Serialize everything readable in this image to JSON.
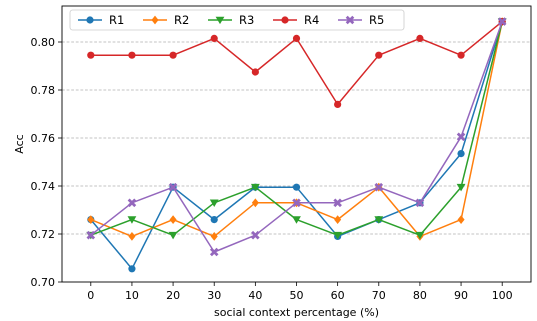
{
  "chart_data": {
    "type": "line",
    "title": "",
    "xlabel": "social context percentage (%)",
    "ylabel": "Acc",
    "x": [
      0,
      10,
      20,
      30,
      40,
      50,
      60,
      70,
      80,
      90,
      100
    ],
    "xlim": [
      -7,
      107
    ],
    "ylim": [
      0.7,
      0.815
    ],
    "yticks": [
      0.7,
      0.72,
      0.74,
      0.76,
      0.78,
      0.8
    ],
    "ytick_labels": [
      "0.70",
      "0.72",
      "0.74",
      "0.76",
      "0.78",
      "0.80"
    ],
    "grid": "horizontal dashed",
    "legend": "top, single row",
    "series": [
      {
        "name": "R1",
        "color": "#1f77b4",
        "marker": "circle",
        "values": [
          0.726,
          0.7055,
          0.7395,
          0.726,
          0.7395,
          0.7395,
          0.719,
          0.726,
          0.733,
          0.7535,
          0.8085
        ]
      },
      {
        "name": "R2",
        "color": "#ff7f0e",
        "marker": "diamond",
        "values": [
          0.726,
          0.719,
          0.726,
          0.719,
          0.733,
          0.733,
          0.726,
          0.7395,
          0.719,
          0.726,
          0.8085
        ]
      },
      {
        "name": "R3",
        "color": "#2ca02c",
        "marker": "triangle-down",
        "values": [
          0.7195,
          0.726,
          0.7195,
          0.733,
          0.7395,
          0.726,
          0.7195,
          0.726,
          0.7195,
          0.7395,
          0.8085
        ]
      },
      {
        "name": "R4",
        "color": "#d62728",
        "marker": "circle",
        "values": [
          0.7945,
          0.7945,
          0.7945,
          0.8015,
          0.7875,
          0.8015,
          0.774,
          0.7945,
          0.8015,
          0.7945,
          0.8085
        ]
      },
      {
        "name": "R5",
        "color": "#9467bd",
        "marker": "x",
        "values": [
          0.7195,
          0.733,
          0.7395,
          0.7125,
          0.7195,
          0.733,
          0.733,
          0.7395,
          0.733,
          0.7605,
          0.8085
        ]
      }
    ]
  }
}
